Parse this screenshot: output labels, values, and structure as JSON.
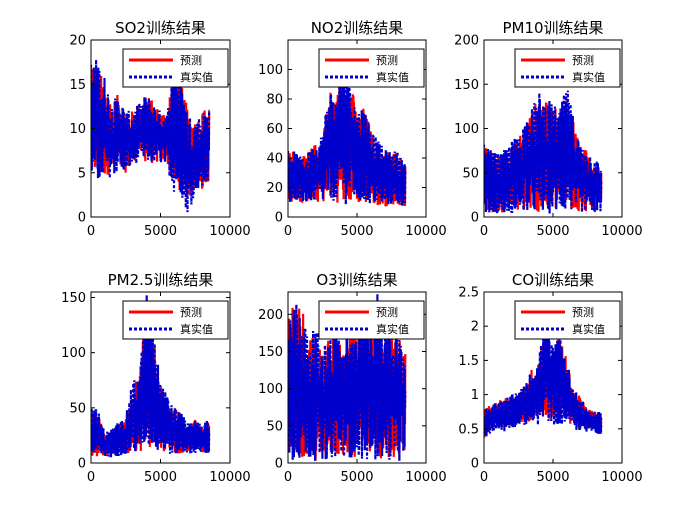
{
  "chart_data": [
    {
      "type": "line",
      "title": "SO2训练结果",
      "xlim": [
        0,
        10000
      ],
      "ylim": [
        0,
        20
      ],
      "x_ticks": [
        "0",
        "5000",
        "10000"
      ],
      "y_ticks": [
        "0",
        "5",
        "10",
        "15",
        "20"
      ],
      "x_data_range": [
        0,
        8500
      ],
      "legend": "top-right",
      "series": [
        {
          "name": "预测",
          "color": "#ff0000",
          "style": "solid",
          "x": [
            0,
            500,
            1000,
            1500,
            2000,
            2500,
            3000,
            3500,
            4000,
            4500,
            5000,
            5500,
            6000,
            6500,
            7000,
            7500,
            8000,
            8500
          ],
          "low": [
            5,
            4,
            4.5,
            5,
            5,
            5,
            6,
            7,
            6,
            6,
            6,
            6,
            3,
            3,
            2,
            3,
            3,
            4
          ],
          "high": [
            19,
            17,
            15,
            13,
            14,
            12,
            12,
            13,
            14,
            13,
            12,
            12,
            19,
            15,
            12,
            11,
            12,
            13
          ]
        },
        {
          "name": "真实值",
          "color": "#0000cc",
          "style": "dashed",
          "x": [
            0,
            500,
            1000,
            1500,
            2000,
            2500,
            3000,
            3500,
            4000,
            4500,
            5000,
            5500,
            6000,
            6500,
            7000,
            7500,
            8000,
            8500
          ],
          "low": [
            4.5,
            3.5,
            4,
            4.5,
            5,
            5,
            5.5,
            6.5,
            6,
            6,
            6,
            5.5,
            2.5,
            2.5,
            0,
            3,
            3,
            3.5
          ],
          "high": [
            18,
            18,
            16,
            13,
            14,
            12,
            12,
            13,
            14,
            13,
            12,
            12,
            19,
            15,
            12,
            11,
            12,
            13
          ]
        }
      ]
    },
    {
      "type": "line",
      "title": "NO2训练结果",
      "xlim": [
        0,
        10000
      ],
      "ylim": [
        0,
        120
      ],
      "x_ticks": [
        "0",
        "5000",
        "10000"
      ],
      "y_ticks": [
        "0",
        "20",
        "40",
        "60",
        "80",
        "100"
      ],
      "x_data_range": [
        0,
        8500
      ],
      "legend": "top-right",
      "series": [
        {
          "name": "预测",
          "color": "#ff0000",
          "style": "solid",
          "x": [
            0,
            500,
            1000,
            1500,
            2000,
            2500,
            3000,
            3500,
            4000,
            4500,
            5000,
            5500,
            6000,
            6500,
            7000,
            7500,
            8000,
            8500
          ],
          "low": [
            10,
            10,
            9,
            10,
            10,
            9,
            12,
            10,
            8,
            9,
            9,
            8,
            8,
            8,
            7,
            8,
            8,
            7
          ],
          "high": [
            46,
            45,
            40,
            45,
            50,
            56,
            88,
            80,
            105,
            95,
            70,
            75,
            60,
            50,
            45,
            45,
            45,
            35
          ]
        },
        {
          "name": "真实值",
          "color": "#0000cc",
          "style": "dashed",
          "x": [
            0,
            500,
            1000,
            1500,
            2000,
            2500,
            3000,
            3500,
            4000,
            4500,
            5000,
            5500,
            6000,
            6500,
            7000,
            7500,
            8000,
            8500
          ],
          "low": [
            10,
            10,
            9,
            10,
            10,
            9,
            11,
            10,
            8,
            9,
            9,
            8,
            8,
            8,
            7,
            8,
            8,
            7
          ],
          "high": [
            47,
            45,
            40,
            45,
            50,
            58,
            90,
            82,
            118,
            100,
            72,
            78,
            62,
            52,
            46,
            45,
            45,
            36
          ]
        }
      ]
    },
    {
      "type": "line",
      "title": "PM10训练结果",
      "xlim": [
        0,
        10000
      ],
      "ylim": [
        0,
        200
      ],
      "x_ticks": [
        "0",
        "5000",
        "10000"
      ],
      "y_ticks": [
        "0",
        "50",
        "100",
        "150",
        "200"
      ],
      "x_data_range": [
        0,
        8500
      ],
      "legend": "top-right",
      "series": [
        {
          "name": "预测",
          "color": "#ff0000",
          "style": "solid",
          "x": [
            0,
            500,
            1000,
            1500,
            2000,
            2500,
            3000,
            3500,
            4000,
            4500,
            5000,
            5500,
            6000,
            6500,
            7000,
            7500,
            8000,
            8500
          ],
          "low": [
            5,
            4,
            5,
            4,
            5,
            5,
            6,
            5,
            5,
            4,
            5,
            5,
            6,
            6,
            5,
            6,
            5,
            7
          ],
          "high": [
            80,
            75,
            70,
            75,
            85,
            90,
            110,
            120,
            140,
            130,
            125,
            120,
            145,
            110,
            80,
            75,
            70,
            55
          ]
        },
        {
          "name": "真实值",
          "color": "#0000cc",
          "style": "dashed",
          "x": [
            0,
            500,
            1000,
            1500,
            2000,
            2500,
            3000,
            3500,
            4000,
            4500,
            5000,
            5500,
            6000,
            6500,
            7000,
            7500,
            8000,
            8500
          ],
          "low": [
            4,
            3,
            4,
            3,
            4,
            4,
            5,
            4,
            4,
            3,
            4,
            4,
            5,
            5,
            4,
            5,
            4,
            6
          ],
          "high": [
            82,
            76,
            72,
            76,
            88,
            92,
            115,
            125,
            142,
            135,
            128,
            122,
            150,
            112,
            82,
            76,
            72,
            55
          ]
        }
      ]
    },
    {
      "type": "line",
      "title": "PM2.5训练结果",
      "xlim": [
        0,
        10000
      ],
      "ylim": [
        0,
        155
      ],
      "x_ticks": [
        "0",
        "5000",
        "10000"
      ],
      "y_ticks": [
        "0",
        "50",
        "100",
        "150"
      ],
      "x_data_range": [
        0,
        8500
      ],
      "legend": "top-right",
      "series": [
        {
          "name": "预测",
          "color": "#ff0000",
          "style": "solid",
          "x": [
            0,
            500,
            1000,
            1500,
            2000,
            2500,
            3000,
            3500,
            4000,
            4500,
            5000,
            5500,
            6000,
            6500,
            7000,
            7500,
            8000,
            8500
          ],
          "low": [
            5,
            4,
            5,
            6,
            7,
            8,
            8,
            10,
            15,
            12,
            10,
            9,
            8,
            9,
            10,
            9,
            9,
            9
          ],
          "high": [
            50,
            45,
            25,
            30,
            35,
            40,
            70,
            80,
            150,
            120,
            70,
            60,
            50,
            45,
            35,
            40,
            35,
            38
          ]
        },
        {
          "name": "真实值",
          "color": "#0000cc",
          "style": "dashed",
          "x": [
            0,
            500,
            1000,
            1500,
            2000,
            2500,
            3000,
            3500,
            4000,
            4500,
            5000,
            5500,
            6000,
            6500,
            7000,
            7500,
            8000,
            8500
          ],
          "low": [
            4,
            3,
            4,
            5,
            6,
            7,
            7,
            9,
            14,
            11,
            9,
            8,
            7,
            8,
            9,
            8,
            8,
            8
          ],
          "high": [
            55,
            48,
            28,
            32,
            38,
            42,
            75,
            82,
            155,
            125,
            72,
            62,
            52,
            46,
            36,
            40,
            36,
            40
          ]
        }
      ]
    },
    {
      "type": "line",
      "title": "O3训练结果",
      "xlim": [
        0,
        10000
      ],
      "ylim": [
        0,
        230
      ],
      "x_ticks": [
        "0",
        "5000",
        "10000"
      ],
      "y_ticks": [
        "0",
        "50",
        "100",
        "150",
        "200"
      ],
      "x_data_range": [
        0,
        8500
      ],
      "legend": "top-right",
      "series": [
        {
          "name": "预测",
          "color": "#ff0000",
          "style": "solid",
          "x": [
            0,
            500,
            1000,
            1500,
            2000,
            2500,
            3000,
            3500,
            4000,
            4500,
            5000,
            5500,
            6000,
            6500,
            7000,
            7500,
            8000,
            8500
          ],
          "low": [
            5,
            3,
            3,
            5,
            3,
            5,
            5,
            8,
            10,
            8,
            5,
            5,
            3,
            3,
            3,
            5,
            3,
            5
          ],
          "high": [
            200,
            220,
            210,
            160,
            180,
            150,
            170,
            190,
            150,
            180,
            170,
            200,
            200,
            225,
            200,
            180,
            170,
            160
          ]
        },
        {
          "name": "真实值",
          "color": "#0000cc",
          "style": "dashed",
          "x": [
            0,
            500,
            1000,
            1500,
            2000,
            2500,
            3000,
            3500,
            4000,
            4500,
            5000,
            5500,
            6000,
            6500,
            7000,
            7500,
            8000,
            8500
          ],
          "low": [
            4,
            2,
            2,
            4,
            2,
            4,
            4,
            7,
            9,
            7,
            4,
            4,
            2,
            2,
            2,
            4,
            2,
            4
          ],
          "high": [
            205,
            220,
            215,
            165,
            185,
            155,
            175,
            195,
            155,
            185,
            175,
            205,
            205,
            228,
            205,
            185,
            175,
            165
          ]
        }
      ]
    },
    {
      "type": "line",
      "title": "CO训练结果",
      "xlim": [
        0,
        10000
      ],
      "ylim": [
        0,
        2.5
      ],
      "x_ticks": [
        "0",
        "5000",
        "10000"
      ],
      "y_ticks": [
        "0",
        "0.5",
        "1",
        "1.5",
        "2",
        "2.5"
      ],
      "x_data_range": [
        0,
        8500
      ],
      "legend": "top-right",
      "series": [
        {
          "name": "预测",
          "color": "#ff0000",
          "style": "solid",
          "x": [
            0,
            500,
            1000,
            1500,
            2000,
            2500,
            3000,
            3500,
            4000,
            4500,
            5000,
            5500,
            6000,
            6500,
            7000,
            7500,
            8000,
            8500
          ],
          "low": [
            0.35,
            0.5,
            0.55,
            0.5,
            0.55,
            0.6,
            0.6,
            0.6,
            0.6,
            0.65,
            0.6,
            0.6,
            0.55,
            0.55,
            0.5,
            0.5,
            0.5,
            0.45
          ],
          "high": [
            0.8,
            0.85,
            0.9,
            0.95,
            1.0,
            1.05,
            1.15,
            1.4,
            1.6,
            2.1,
            1.7,
            1.9,
            1.5,
            1.1,
            0.95,
            0.8,
            0.75,
            0.75
          ]
        },
        {
          "name": "真实值",
          "color": "#0000cc",
          "style": "dashed",
          "x": [
            0,
            500,
            1000,
            1500,
            2000,
            2500,
            3000,
            3500,
            4000,
            4500,
            5000,
            5500,
            6000,
            6500,
            7000,
            7500,
            8000,
            8500
          ],
          "low": [
            0.3,
            0.45,
            0.5,
            0.45,
            0.5,
            0.55,
            0.55,
            0.55,
            0.55,
            0.6,
            0.55,
            0.55,
            0.5,
            0.5,
            0.45,
            0.45,
            0.45,
            0.4
          ],
          "high": [
            0.8,
            0.85,
            0.9,
            0.95,
            1.0,
            1.05,
            1.15,
            1.4,
            1.6,
            2.15,
            1.7,
            1.95,
            1.5,
            1.1,
            0.95,
            0.8,
            0.75,
            0.75
          ]
        }
      ]
    }
  ]
}
